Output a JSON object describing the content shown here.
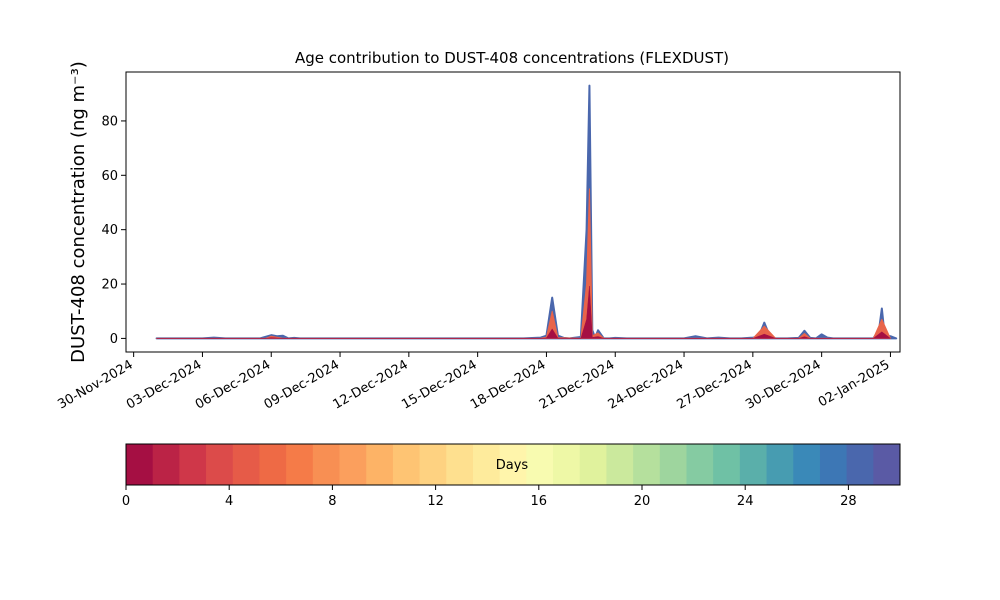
{
  "chart_data": {
    "type": "area",
    "title": "Age contribution to DUST-408 concentrations (FLEXDUST)",
    "ylabel": "DUST-408 concentration (ng m⁻³)",
    "xlabel": "",
    "xlim": [
      "2024-11-29T16:00",
      "2025-01-02T10:00"
    ],
    "ylim": [
      -5,
      98
    ],
    "yticks": [
      0,
      20,
      40,
      60,
      80
    ],
    "xticks": [
      "2024-11-30",
      "2024-12-03",
      "2024-12-06",
      "2024-12-09",
      "2024-12-12",
      "2024-12-15",
      "2024-12-18",
      "2024-12-21",
      "2024-12-24",
      "2024-12-27",
      "2024-12-30",
      "2025-01-02"
    ],
    "xtick_labels": [
      "30-Nov-2024",
      "03-Dec-2024",
      "06-Dec-2024",
      "09-Dec-2024",
      "12-Dec-2024",
      "15-Dec-2024",
      "18-Dec-2024",
      "21-Dec-2024",
      "24-Dec-2024",
      "27-Dec-2024",
      "30-Dec-2024",
      "02-Jan-2025"
    ],
    "grid": false,
    "total_series": {
      "color": "#4a67ad",
      "x": [
        "2024-12-01T00:00",
        "2024-12-03T00:00",
        "2024-12-03T12:00",
        "2024-12-04T00:00",
        "2024-12-05T12:00",
        "2024-12-06T00:00",
        "2024-12-06T06:00",
        "2024-12-06T12:00",
        "2024-12-06T18:00",
        "2024-12-07T00:00",
        "2024-12-07T06:00",
        "2024-12-07T12:00",
        "2024-12-17T00:00",
        "2024-12-17T18:00",
        "2024-12-18T00:00",
        "2024-12-18T06:00",
        "2024-12-18T12:00",
        "2024-12-18T18:00",
        "2024-12-19T00:00",
        "2024-12-19T12:00",
        "2024-12-19T18:00",
        "2024-12-19T21:00",
        "2024-12-20T00:00",
        "2024-12-20T03:00",
        "2024-12-20T06:00",
        "2024-12-20T12:00",
        "2024-12-20T18:00",
        "2024-12-21T00:00",
        "2024-12-21T12:00",
        "2024-12-24T00:00",
        "2024-12-24T12:00",
        "2024-12-25T00:00",
        "2024-12-25T12:00",
        "2024-12-26T00:00",
        "2024-12-26T12:00",
        "2024-12-27T00:00",
        "2024-12-27T06:00",
        "2024-12-27T12:00",
        "2024-12-27T18:00",
        "2024-12-28T00:00",
        "2024-12-28T12:00",
        "2024-12-29T00:00",
        "2024-12-29T06:00",
        "2024-12-29T12:00",
        "2024-12-29T18:00",
        "2024-12-30T00:00",
        "2024-12-30T06:00",
        "2024-12-30T12:00",
        "2025-01-01T00:00",
        "2025-01-01T06:00",
        "2025-01-01T12:00",
        "2025-01-01T15:00",
        "2025-01-01T18:00",
        "2025-01-02T00:00",
        "2025-01-02T06:00"
      ],
      "values": [
        0,
        0,
        0.3,
        0,
        0,
        1.2,
        0.8,
        1.0,
        0,
        0.2,
        0,
        0,
        0,
        0.3,
        1.0,
        15.0,
        1.0,
        0.2,
        0,
        0.5,
        40.0,
        93.0,
        3.0,
        0.2,
        3.0,
        0,
        0,
        0.2,
        0,
        0,
        0.8,
        0,
        0.3,
        0,
        0,
        0.3,
        0.5,
        5.8,
        0.5,
        0,
        0,
        0.2,
        2.8,
        0.2,
        0,
        1.5,
        0.3,
        0,
        0,
        0,
        3.0,
        11.0,
        1.0,
        0.8,
        0
      ]
    },
    "fresh_series": {
      "color": "#e8644a",
      "x": [
        "2024-12-01T00:00",
        "2024-12-05T18:00",
        "2024-12-06T00:00",
        "2024-12-06T12:00",
        "2024-12-17T18:00",
        "2024-12-18T00:00",
        "2024-12-18T06:00",
        "2024-12-18T12:00",
        "2024-12-19T12:00",
        "2024-12-19T18:00",
        "2024-12-19T21:00",
        "2024-12-20T00:00",
        "2024-12-20T06:00",
        "2024-12-20T12:00",
        "2024-12-27T00:00",
        "2024-12-27T12:00",
        "2024-12-28T00:00",
        "2024-12-29T00:00",
        "2024-12-29T06:00",
        "2024-12-29T12:00",
        "2025-01-01T06:00",
        "2025-01-01T15:00",
        "2025-01-02T00:00"
      ],
      "values": [
        0,
        0,
        0.8,
        0,
        0,
        0.5,
        10.0,
        0.3,
        0,
        20.0,
        55.0,
        1.0,
        2.0,
        0,
        0,
        4.5,
        0,
        0,
        1.8,
        0,
        0,
        7.0,
        0
      ]
    },
    "colorbar": {
      "label": "Days",
      "min": 0,
      "max": 30,
      "ticks": [
        0,
        4,
        8,
        12,
        16,
        20,
        24,
        28
      ],
      "colors": [
        "#a50f43",
        "#bb2346",
        "#cf3749",
        "#dc4b4a",
        "#e65b48",
        "#ee6a45",
        "#f57b48",
        "#f88f53",
        "#fb9f5d",
        "#fdb366",
        "#fec473",
        "#fed281",
        "#fee08f",
        "#feeb9c",
        "#fff5ab",
        "#f8fbb0",
        "#eef8a6",
        "#e0f29d",
        "#cbe99d",
        "#b5e09d",
        "#9ed59e",
        "#85cba2",
        "#6fc1a5",
        "#5aafaa",
        "#479cb1",
        "#3a89b8",
        "#3d77b5",
        "#4a67ad",
        "#5a5aa5"
      ]
    }
  }
}
